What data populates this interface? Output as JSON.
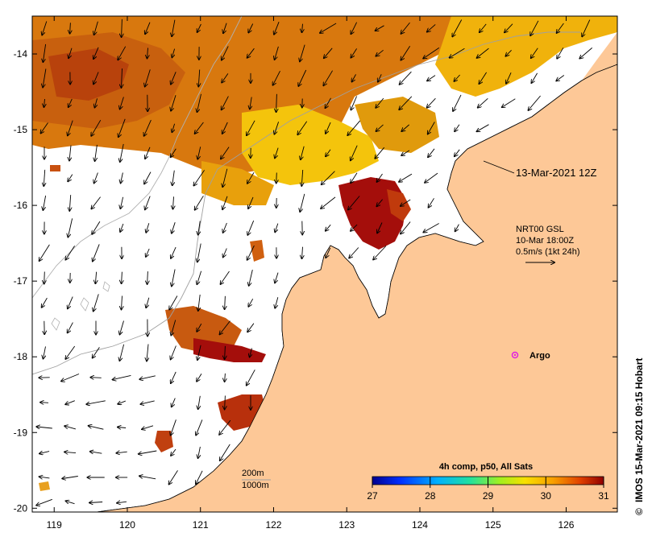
{
  "map": {
    "title_label": "13-Mar-2021 12Z",
    "product": {
      "line1": "NRT00 GSL",
      "line2": "10-Mar 18:00Z",
      "line3": "0.5m/s (1kt 24h)"
    },
    "argo_label": "Argo",
    "depth_contours": {
      "label1": "200m",
      "label2": "1000m"
    },
    "credit": "IMOS 15-Mar-2021 09:15 Hobart",
    "copyright_symbol": "©",
    "colorbar": {
      "title": "4h comp, p50, All Sats",
      "ticks": [
        "27",
        "28",
        "29",
        "30",
        "31"
      ],
      "min": 27,
      "max": 31
    },
    "x_axis": {
      "ticks": [
        "119",
        "120",
        "121",
        "122",
        "123",
        "124",
        "125",
        "126"
      ],
      "range": [
        118.7,
        126.7
      ]
    },
    "y_axis": {
      "ticks": [
        "-14",
        "-15",
        "-16",
        "-17",
        "-18",
        "-19",
        "-20"
      ],
      "range": [
        -20.05,
        -13.5
      ]
    },
    "colors": {
      "land": "#fdc897",
      "hot": "#a40e0b",
      "warm": "#d05a10",
      "mid": "#e8920c",
      "cool": "#f4c20a",
      "argo": "#e020e0"
    }
  }
}
